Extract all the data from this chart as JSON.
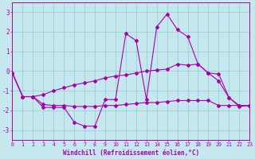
{
  "xlabel": "Windchill (Refroidissement éolien,°C)",
  "bg_color": "#c5e8ee",
  "grid_color": "#a0ccd8",
  "line_color": "#aa00aa",
  "xlim": [
    0,
    23
  ],
  "ylim": [
    -3.5,
    3.5
  ],
  "yticks": [
    -3,
    -2,
    -1,
    0,
    1,
    2,
    3
  ],
  "xticks": [
    0,
    1,
    2,
    3,
    4,
    5,
    6,
    7,
    8,
    9,
    10,
    11,
    12,
    13,
    14,
    15,
    16,
    17,
    18,
    19,
    20,
    21,
    22,
    23
  ],
  "y_jagged": [
    -0.1,
    -1.3,
    -1.3,
    -1.85,
    -1.85,
    -1.85,
    -2.6,
    -2.8,
    -2.8,
    -1.45,
    -1.45,
    1.9,
    1.55,
    -1.45,
    2.25,
    2.9,
    2.1,
    1.75,
    0.35,
    -0.1,
    -0.5,
    -1.35,
    -1.8,
    -1.75
  ],
  "y_upper": [
    -0.1,
    -1.3,
    -1.3,
    -1.2,
    -1.0,
    -0.85,
    -0.7,
    -0.6,
    -0.5,
    -0.35,
    -0.25,
    -0.2,
    -0.1,
    0.0,
    0.05,
    0.1,
    0.35,
    0.3,
    0.35,
    -0.1,
    -0.15,
    -1.35,
    -1.75,
    -1.75
  ],
  "y_lower": [
    -0.1,
    -1.3,
    -1.3,
    -1.7,
    -1.75,
    -1.75,
    -1.8,
    -1.8,
    -1.8,
    -1.75,
    -1.75,
    -1.7,
    -1.65,
    -1.6,
    -1.6,
    -1.55,
    -1.5,
    -1.5,
    -1.5,
    -1.5,
    -1.75,
    -1.75,
    -1.75,
    -1.75
  ]
}
